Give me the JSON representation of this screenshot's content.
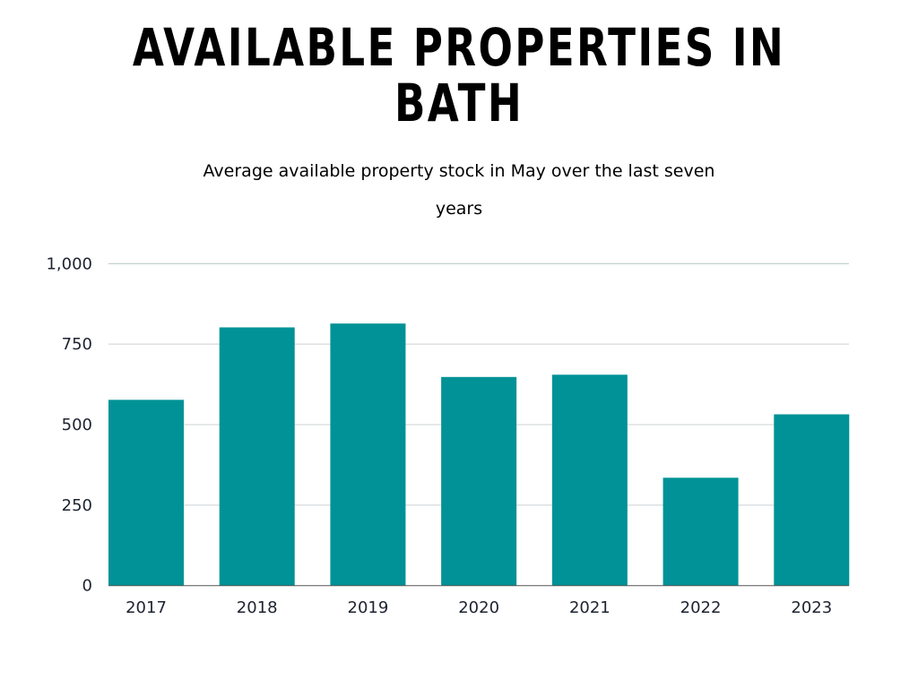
{
  "chart_data": {
    "type": "bar",
    "title": "AVAILABLE PROPERTIES IN BATH",
    "subtitle": "Average available property stock in May over the last seven years",
    "categories": [
      "2017",
      "2018",
      "2019",
      "2020",
      "2021",
      "2022",
      "2023"
    ],
    "values": [
      577,
      802,
      814,
      648,
      655,
      335,
      532
    ],
    "ylim": [
      0,
      1000
    ],
    "yticks": [
      0,
      250,
      500,
      750,
      1000
    ],
    "ytick_labels": [
      "0",
      "250",
      "500",
      "750",
      "1,000"
    ],
    "xlabel": "",
    "ylabel": "",
    "grid": true,
    "bar_color": "#009296"
  }
}
